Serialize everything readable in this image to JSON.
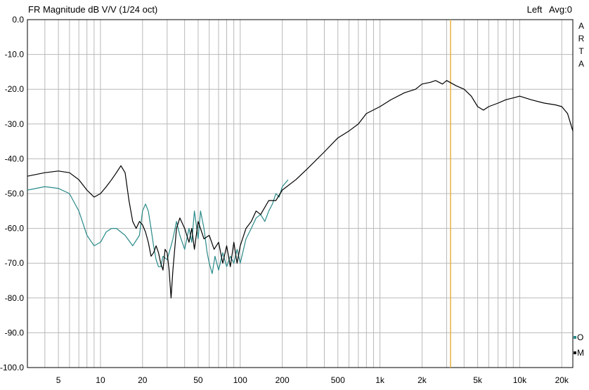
{
  "header": {
    "title": "FR Magnitude dB V/V (1/24 oct)",
    "channel": "Left",
    "averages": "Avg:0"
  },
  "brand": {
    "letters": [
      "A",
      "R",
      "T",
      "A"
    ]
  },
  "legend": {
    "items": [
      {
        "label": "O",
        "color": "#2a8a8a"
      },
      {
        "label": "M",
        "color": "#000000"
      }
    ]
  },
  "colors": {
    "grid": "#b9b9b9",
    "marker": "#e8b040",
    "teal": "#2a8a8a",
    "black": "#000000"
  },
  "chart_data": {
    "type": "line",
    "title": "FR Magnitude dB V/V (1/24 oct)",
    "xscale": "log",
    "xlim": [
      3,
      24000
    ],
    "ylim": [
      -100,
      0
    ],
    "grid": true,
    "legend_position": "bottom-right",
    "x_ticks": [
      5,
      10,
      20,
      50,
      100,
      200,
      500,
      1000,
      2000,
      5000,
      10000,
      20000
    ],
    "x_tick_labels": [
      "5",
      "10",
      "20",
      "50",
      "100",
      "200",
      "500",
      "1k",
      "2k",
      "5k",
      "10k",
      "20k"
    ],
    "y_ticks": [
      0,
      -10,
      -20,
      -30,
      -40,
      -50,
      -60,
      -70,
      -80,
      -90,
      -100
    ],
    "y_tick_labels": [
      "0.0",
      "-10.0",
      "-20.0",
      "-30.0",
      "-40.0",
      "-50.0",
      "-60.0",
      "-70.0",
      "-80.0",
      "-90.0",
      "-100.0"
    ],
    "marker_x": 3200,
    "series": [
      {
        "name": "O",
        "color": "#2a8a8a",
        "x": [
          3,
          4,
          5,
          6,
          7,
          8,
          9,
          10,
          11,
          12,
          13,
          15,
          17,
          19,
          20,
          21,
          22,
          23,
          24,
          25,
          26,
          27,
          28,
          30,
          32,
          33,
          35,
          37,
          40,
          43,
          45,
          47,
          50,
          52,
          55,
          58,
          60,
          63,
          66,
          70,
          75,
          80,
          85,
          90,
          95,
          100,
          110,
          120,
          130,
          140,
          150,
          160,
          170,
          180,
          190,
          200,
          220
        ],
        "y": [
          -49,
          -48,
          -48.5,
          -50,
          -55,
          -62,
          -65,
          -64,
          -61,
          -60,
          -60,
          -62,
          -65,
          -62,
          -55,
          -53,
          -55,
          -60,
          -65,
          -69,
          -71,
          -71,
          -68,
          -69,
          -65,
          -63,
          -58,
          -62,
          -66,
          -60,
          -64,
          -55,
          -63,
          -55,
          -60,
          -67,
          -70,
          -73,
          -68,
          -72,
          -67,
          -71,
          -68,
          -70,
          -66,
          -70,
          -63,
          -60,
          -57,
          -56,
          -58,
          -55,
          -53,
          -50,
          -51,
          -48,
          -46
        ]
      },
      {
        "name": "M",
        "color": "#000000",
        "x": [
          3,
          4,
          5,
          6,
          7,
          8,
          9,
          10,
          11,
          12,
          13,
          14,
          15,
          16,
          17,
          18,
          19,
          20,
          21,
          22,
          23,
          24,
          25,
          26,
          27,
          28,
          29,
          30,
          31,
          32,
          33,
          35,
          37,
          40,
          43,
          45,
          47,
          50,
          55,
          60,
          65,
          70,
          75,
          80,
          85,
          90,
          95,
          100,
          110,
          120,
          130,
          140,
          160,
          180,
          200,
          250,
          300,
          400,
          500,
          600,
          700,
          800,
          1000,
          1200,
          1500,
          1800,
          2000,
          2300,
          2500,
          2800,
          3000,
          3500,
          4000,
          4500,
          5000,
          5500,
          6000,
          7000,
          8000,
          9000,
          10000,
          12000,
          15000,
          18000,
          20000,
          22000,
          24000
        ],
        "y": [
          -45,
          -44,
          -43.5,
          -44,
          -46,
          -49,
          -51,
          -50,
          -48,
          -46,
          -44,
          -42,
          -44,
          -52,
          -58,
          -60,
          -58,
          -59,
          -61,
          -64,
          -68,
          -67,
          -65,
          -67,
          -70,
          -72,
          -66,
          -67,
          -72,
          -80,
          -72,
          -60,
          -57,
          -60,
          -64,
          -60,
          -66,
          -58,
          -63,
          -62,
          -66,
          -64,
          -70,
          -65,
          -71,
          -64,
          -70,
          -65,
          -60,
          -58,
          -55,
          -56,
          -52,
          -52,
          -49,
          -46,
          -43,
          -38,
          -34,
          -32,
          -30,
          -27,
          -25,
          -23,
          -21,
          -20,
          -18.5,
          -18,
          -17.5,
          -18.5,
          -17.5,
          -19,
          -20,
          -22,
          -25,
          -26,
          -25,
          -24,
          -23,
          -22.5,
          -22,
          -23,
          -24,
          -24.5,
          -25,
          -27,
          -32
        ]
      }
    ]
  }
}
